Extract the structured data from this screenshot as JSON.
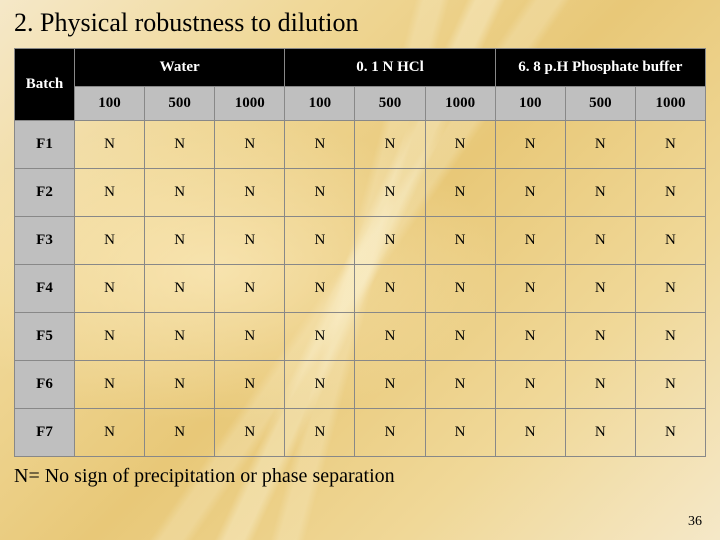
{
  "title": "2. Physical robustness to dilution",
  "table": {
    "corner": "Batch",
    "groups": [
      "Water",
      "0. 1 N HCl",
      "6. 8 p.H Phosphate buffer"
    ],
    "subheaders": [
      "100",
      "500",
      "1000",
      "100",
      "500",
      "1000",
      "100",
      "500",
      "1000"
    ],
    "rows": [
      {
        "label": "F1",
        "cells": [
          "N",
          "N",
          "N",
          "N",
          "N",
          "N",
          "N",
          "N",
          "N"
        ]
      },
      {
        "label": "F2",
        "cells": [
          "N",
          "N",
          "N",
          "N",
          "N",
          "N",
          "N",
          "N",
          "N"
        ]
      },
      {
        "label": "F3",
        "cells": [
          "N",
          "N",
          "N",
          "N",
          "N",
          "N",
          "N",
          "N",
          "N"
        ]
      },
      {
        "label": "F4",
        "cells": [
          "N",
          "N",
          "N",
          "N",
          "N",
          "N",
          "N",
          "N",
          "N"
        ]
      },
      {
        "label": "F5",
        "cells": [
          "N",
          "N",
          "N",
          "N",
          "N",
          "N",
          "N",
          "N",
          "N"
        ]
      },
      {
        "label": "F6",
        "cells": [
          "N",
          "N",
          "N",
          "N",
          "N",
          "N",
          "N",
          "N",
          "N"
        ]
      },
      {
        "label": "F7",
        "cells": [
          "N",
          "N",
          "N",
          "N",
          "N",
          "N",
          "N",
          "N",
          "N"
        ]
      }
    ]
  },
  "footnote": "N= No sign of precipitation or phase separation",
  "slide_number": "36",
  "colors": {
    "header_bg": "#000000",
    "header_fg": "#ffffff",
    "subheader_bg": "#bfbfbf",
    "border": "#888888"
  }
}
